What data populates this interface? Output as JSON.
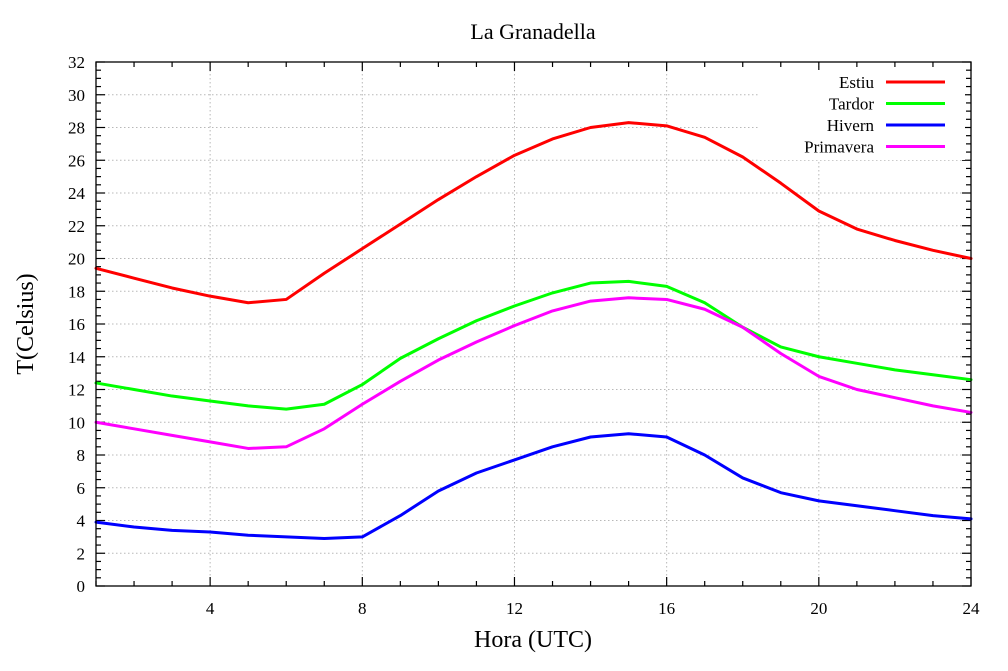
{
  "chart_data": {
    "type": "line",
    "title": "La Granadella",
    "xlabel": "Hora (UTC)",
    "ylabel": "T(Celsius)",
    "xlim": [
      1,
      24
    ],
    "ylim": [
      0,
      32
    ],
    "xticks": [
      4,
      8,
      12,
      16,
      20,
      24
    ],
    "xminor_step": 1,
    "yticks": [
      0,
      2,
      4,
      6,
      8,
      10,
      12,
      14,
      16,
      18,
      20,
      22,
      24,
      26,
      28,
      30,
      32
    ],
    "yminor_step": 0.5,
    "grid": true,
    "legend_position": "top-right",
    "x": [
      1,
      2,
      3,
      4,
      5,
      6,
      7,
      8,
      9,
      10,
      11,
      12,
      13,
      14,
      15,
      16,
      17,
      18,
      19,
      20,
      21,
      22,
      23,
      24
    ],
    "series": [
      {
        "name": "Estiu",
        "color": "#ff0000",
        "values": [
          19.4,
          18.8,
          18.2,
          17.7,
          17.3,
          17.5,
          19.1,
          20.6,
          22.1,
          23.6,
          25.0,
          26.3,
          27.3,
          28.0,
          28.3,
          28.1,
          27.4,
          26.2,
          24.6,
          22.9,
          21.8,
          21.1,
          20.5,
          20.0
        ]
      },
      {
        "name": "Tardor",
        "color": "#00ff00",
        "values": [
          12.4,
          12.0,
          11.6,
          11.3,
          11.0,
          10.8,
          11.1,
          12.3,
          13.9,
          15.1,
          16.2,
          17.1,
          17.9,
          18.5,
          18.6,
          18.3,
          17.3,
          15.8,
          14.6,
          14.0,
          13.6,
          13.2,
          12.9,
          12.6
        ]
      },
      {
        "name": "Hivern",
        "color": "#0000ff",
        "values": [
          3.9,
          3.6,
          3.4,
          3.3,
          3.1,
          3.0,
          2.9,
          3.0,
          4.3,
          5.8,
          6.9,
          7.7,
          8.5,
          9.1,
          9.3,
          9.1,
          8.0,
          6.6,
          5.7,
          5.2,
          4.9,
          4.6,
          4.3,
          4.1
        ]
      },
      {
        "name": "Primavera",
        "color": "#ff00ff",
        "values": [
          10.0,
          9.6,
          9.2,
          8.8,
          8.4,
          8.5,
          9.6,
          11.1,
          12.5,
          13.8,
          14.9,
          15.9,
          16.8,
          17.4,
          17.6,
          17.5,
          16.9,
          15.8,
          14.2,
          12.8,
          12.0,
          11.5,
          11.0,
          10.6
        ]
      }
    ]
  }
}
